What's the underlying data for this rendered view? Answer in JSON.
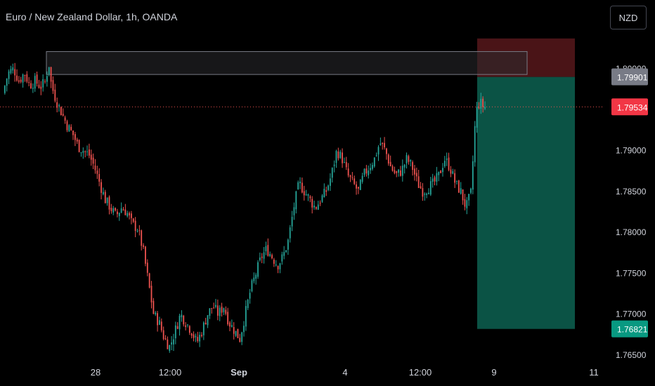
{
  "header": {
    "title": "Euro / New Zealand Dollar, 1h, OANDA"
  },
  "currency_button": {
    "label": "NZD"
  },
  "colors": {
    "background": "#000000",
    "up": "#26a69a",
    "down": "#ef5350",
    "axis_text": "#d1d4dc",
    "current_price_line": "#ef5350",
    "target_zone": "#0b5345",
    "stop_zone": "#4a1417",
    "supply_zone": "#2a2a2e"
  },
  "chart_data": {
    "type": "candlestick",
    "symbol": "EURNZD",
    "timeframe": "1h",
    "y_axis": {
      "ticks": [
        "1.80000",
        "1.79000",
        "1.78500",
        "1.78000",
        "1.77500",
        "1.77000",
        "1.76500"
      ],
      "range": [
        1.7638,
        1.8084
      ]
    },
    "x_axis": {
      "ticks": [
        "28",
        "12:00",
        "Sep",
        "4",
        "12:00",
        "9",
        "11"
      ]
    },
    "price_labels": {
      "stop": "1.79901",
      "current": "1.79534",
      "target": "1.76821"
    },
    "zones": {
      "supply": {
        "top": 1.8021,
        "bottom": 1.7993
      },
      "stop": {
        "top": 1.8037,
        "bottom": 1.799
      },
      "target": {
        "top": 1.799,
        "bottom": 1.7682
      }
    },
    "close_path": [
      [
        0,
        1.797
      ],
      [
        2,
        1.7995
      ],
      [
        4,
        1.8
      ],
      [
        6,
        1.7985
      ],
      [
        8,
        1.7995
      ],
      [
        10,
        1.798
      ],
      [
        12,
        1.7985
      ],
      [
        14,
        1.7978
      ],
      [
        16,
        1.7985
      ],
      [
        17,
        1.801
      ],
      [
        18,
        1.798
      ],
      [
        20,
        1.796
      ],
      [
        22,
        1.7945
      ],
      [
        24,
        1.793
      ],
      [
        26,
        1.792
      ],
      [
        28,
        1.7905
      ],
      [
        30,
        1.79
      ],
      [
        32,
        1.7895
      ],
      [
        34,
        1.788
      ],
      [
        36,
        1.786
      ],
      [
        38,
        1.784
      ],
      [
        40,
        1.783
      ],
      [
        42,
        1.782
      ],
      [
        44,
        1.783
      ],
      [
        46,
        1.7825
      ],
      [
        48,
        1.781
      ],
      [
        50,
        1.7805
      ],
      [
        52,
        1.778
      ],
      [
        54,
        1.774
      ],
      [
        56,
        1.77
      ],
      [
        58,
        1.769
      ],
      [
        60,
        1.767
      ],
      [
        62,
        1.766
      ],
      [
        64,
        1.768
      ],
      [
        66,
        1.77
      ],
      [
        68,
        1.769
      ],
      [
        70,
        1.768
      ],
      [
        72,
        1.7665
      ],
      [
        74,
        1.768
      ],
      [
        76,
        1.77
      ],
      [
        78,
        1.771
      ],
      [
        80,
        1.77
      ],
      [
        82,
        1.771
      ],
      [
        84,
        1.769
      ],
      [
        86,
        1.768
      ],
      [
        88,
        1.767
      ],
      [
        90,
        1.77
      ],
      [
        92,
        1.773
      ],
      [
        94,
        1.775
      ],
      [
        96,
        1.777
      ],
      [
        98,
        1.778
      ],
      [
        100,
        1.777
      ],
      [
        102,
        1.776
      ],
      [
        104,
        1.777
      ],
      [
        106,
        1.779
      ],
      [
        108,
        1.783
      ],
      [
        110,
        1.786
      ],
      [
        112,
        1.785
      ],
      [
        114,
        1.784
      ],
      [
        116,
        1.783
      ],
      [
        118,
        1.784
      ],
      [
        120,
        1.785
      ],
      [
        122,
        1.787
      ],
      [
        124,
        1.79
      ],
      [
        126,
        1.789
      ],
      [
        128,
        1.787
      ],
      [
        130,
        1.786
      ],
      [
        132,
        1.785
      ],
      [
        134,
        1.787
      ],
      [
        136,
        1.788
      ],
      [
        138,
        1.789
      ],
      [
        140,
        1.791
      ],
      [
        142,
        1.79
      ],
      [
        144,
        1.788
      ],
      [
        146,
        1.787
      ],
      [
        148,
        1.7875
      ],
      [
        150,
        1.789
      ],
      [
        152,
        1.788
      ],
      [
        154,
        1.786
      ],
      [
        156,
        1.785
      ],
      [
        158,
        1.7855
      ],
      [
        160,
        1.786
      ],
      [
        162,
        1.787
      ],
      [
        164,
        1.789
      ],
      [
        166,
        1.788
      ],
      [
        168,
        1.786
      ],
      [
        170,
        1.785
      ],
      [
        172,
        1.783
      ],
      [
        174,
        1.785
      ],
      [
        175,
        1.792
      ],
      [
        176,
        1.795
      ],
      [
        177,
        1.796
      ],
      [
        178,
        1.7955
      ],
      [
        179,
        1.7953
      ]
    ]
  }
}
